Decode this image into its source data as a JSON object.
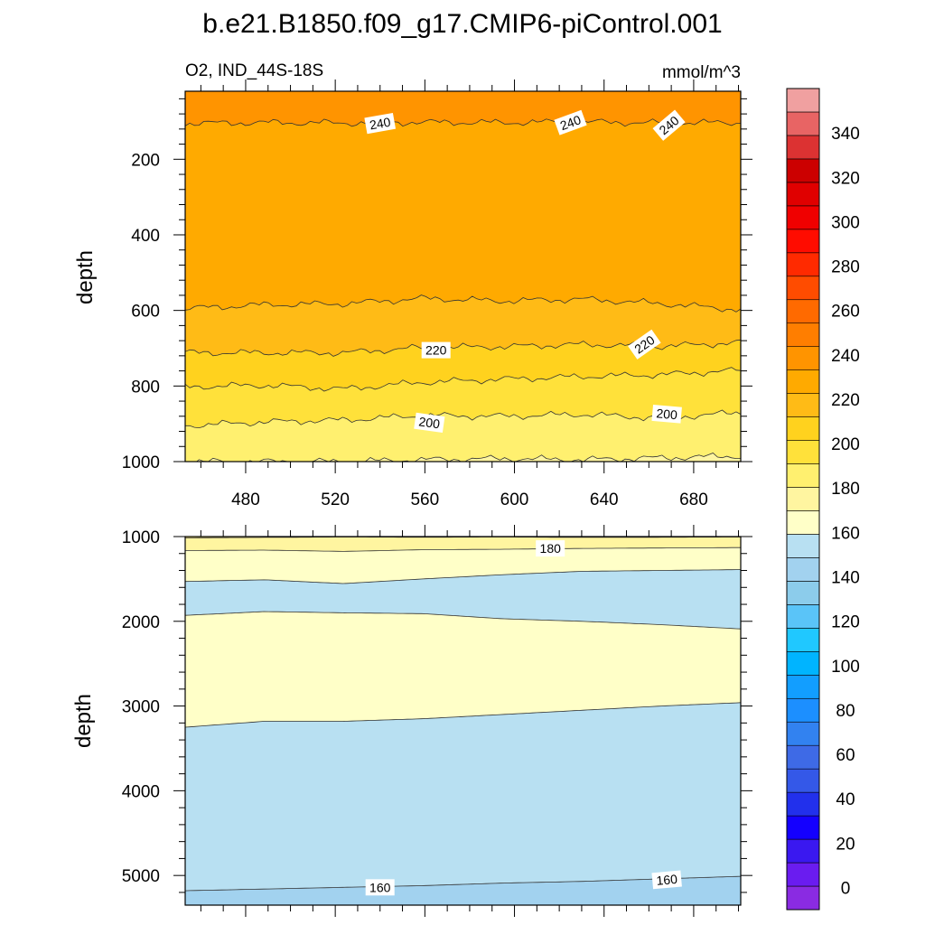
{
  "title": "b.e21.B1850.f09_g17.CMIP6-piControl.001",
  "subtitle_left": "O2, IND_44S-18S",
  "subtitle_right": "mmol/m^3",
  "chart_data": [
    {
      "type": "contour",
      "panel": "upper",
      "ylabel": "depth",
      "xlabel": "",
      "xlim": [
        453,
        701
      ],
      "ylim": [
        1000,
        20
      ],
      "x_ticks": [
        480,
        520,
        560,
        600,
        640,
        680
      ],
      "y_ticks": [
        200,
        400,
        600,
        800,
        1000
      ],
      "bands": [
        {
          "range": [
            240,
            250
          ],
          "color": "#ff9400",
          "top": [
            20,
            20,
            20,
            20,
            20,
            20,
            20,
            20
          ],
          "bottom": [
            105,
            103,
            104,
            102,
            103,
            101,
            104,
            103
          ]
        },
        {
          "range": [
            230,
            240
          ],
          "color": "#ffaa00",
          "top": [
            105,
            103,
            104,
            102,
            103,
            101,
            104,
            103
          ],
          "bottom": [
            595,
            585,
            582,
            568,
            575,
            570,
            582,
            598
          ]
        },
        {
          "range": [
            220,
            230
          ],
          "color": "#ffbb16",
          "top": [
            595,
            585,
            582,
            568,
            575,
            570,
            582,
            598
          ],
          "bottom": [
            712,
            712,
            712,
            698,
            696,
            690,
            695,
            685
          ]
        },
        {
          "range": [
            210,
            220
          ],
          "color": "#ffd21e",
          "top": [
            712,
            712,
            712,
            698,
            696,
            690,
            695,
            685
          ],
          "bottom": [
            802,
            798,
            808,
            790,
            782,
            775,
            770,
            758
          ]
        },
        {
          "range": [
            200,
            210
          ],
          "color": "#ffe13a",
          "top": [
            802,
            798,
            808,
            790,
            782,
            775,
            770,
            758
          ],
          "bottom": [
            905,
            895,
            890,
            878,
            880,
            875,
            885,
            870
          ]
        },
        {
          "range": [
            190,
            200
          ],
          "color": "#fff06f",
          "top": [
            905,
            895,
            890,
            878,
            880,
            875,
            885,
            870
          ],
          "bottom": [
            1000,
            1000,
            1000,
            995,
            992,
            995,
            990,
            985
          ]
        },
        {
          "range": [
            180,
            190
          ],
          "color": "#fff5a0",
          "top": [
            1000,
            1000,
            1000,
            995,
            992,
            995,
            990,
            985
          ],
          "bottom": [
            1000,
            1000,
            1000,
            1000,
            1000,
            1000,
            1000,
            1000
          ]
        }
      ],
      "contour_labels": [
        {
          "text": "240",
          "x": 540,
          "y": 105,
          "angle": -10
        },
        {
          "text": "240",
          "x": 625,
          "y": 103,
          "angle": -20
        },
        {
          "text": "240",
          "x": 669,
          "y": 110,
          "angle": -40
        },
        {
          "text": "220",
          "x": 565,
          "y": 705,
          "angle": 0
        },
        {
          "text": "220",
          "x": 658,
          "y": 690,
          "angle": -35
        },
        {
          "text": "200",
          "x": 562,
          "y": 897,
          "angle": 8
        },
        {
          "text": "200",
          "x": 668,
          "y": 874,
          "angle": 5
        }
      ]
    },
    {
      "type": "contour",
      "panel": "lower",
      "ylabel": "depth",
      "xlabel": "",
      "xlim": [
        453,
        701
      ],
      "ylim": [
        5350,
        1000
      ],
      "x_ticks": [
        480,
        520,
        560,
        600,
        640,
        680
      ],
      "y_ticks": [
        1000,
        2000,
        3000,
        4000,
        5000
      ],
      "bands": [
        {
          "range": [
            190,
            200
          ],
          "color": "#fff06f",
          "top": [
            1000,
            1000,
            1000,
            1000,
            1000,
            1000,
            1000,
            1000
          ],
          "bottom": [
            1015,
            1010,
            1005,
            1008,
            1005,
            1010,
            1008,
            1005
          ]
        },
        {
          "range": [
            180,
            190
          ],
          "color": "#fff5a0",
          "top": [
            1015,
            1010,
            1005,
            1008,
            1005,
            1010,
            1008,
            1005
          ],
          "bottom": [
            1165,
            1160,
            1175,
            1155,
            1150,
            1140,
            1135,
            1130
          ]
        },
        {
          "range": [
            170,
            180
          ],
          "color": "#ffffc8",
          "top": [
            1165,
            1160,
            1175,
            1155,
            1150,
            1140,
            1135,
            1130
          ],
          "bottom": [
            1530,
            1510,
            1555,
            1500,
            1450,
            1410,
            1400,
            1390
          ]
        },
        {
          "range": [
            160,
            170
          ],
          "color": "#b8e0f2",
          "top": [
            1530,
            1510,
            1555,
            1500,
            1450,
            1410,
            1400,
            1390
          ],
          "bottom": [
            1930,
            1885,
            1900,
            1910,
            1970,
            2000,
            2040,
            2090
          ]
        },
        {
          "range": [
            170,
            180
          ],
          "color": "#ffffc8",
          "top": [
            1930,
            1885,
            1900,
            1910,
            1970,
            2000,
            2040,
            2090
          ],
          "bottom": [
            3250,
            3180,
            3180,
            3150,
            3100,
            3050,
            3000,
            2960
          ]
        },
        {
          "range": [
            160,
            170
          ],
          "color": "#b8e0f2",
          "top": [
            3250,
            3180,
            3180,
            3150,
            3100,
            3050,
            3000,
            2960
          ],
          "bottom": [
            5180,
            5160,
            5140,
            5120,
            5090,
            5070,
            5040,
            5010
          ]
        },
        {
          "range": [
            150,
            160
          ],
          "color": "#a2d2ef",
          "top": [
            5180,
            5160,
            5140,
            5120,
            5090,
            5070,
            5040,
            5010
          ],
          "bottom": [
            5350,
            5350,
            5350,
            5350,
            5350,
            5350,
            5350,
            5350
          ]
        }
      ],
      "contour_labels": [
        {
          "text": "180",
          "x": 616,
          "y": 1140,
          "angle": 0
        },
        {
          "text": "160",
          "x": 540,
          "y": 5140,
          "angle": 0
        },
        {
          "text": "160",
          "x": 668,
          "y": 5050,
          "angle": -5
        }
      ]
    },
    {
      "type": "colorbar",
      "min": -10,
      "max": 360,
      "step": 10,
      "labels": [
        "0",
        "20",
        "40",
        "60",
        "80",
        "100",
        "120",
        "140",
        "160",
        "180",
        "200",
        "220",
        "240",
        "260",
        "280",
        "300",
        "320",
        "340"
      ],
      "label_values": [
        0,
        20,
        40,
        60,
        80,
        100,
        120,
        140,
        160,
        180,
        200,
        220,
        240,
        260,
        280,
        300,
        320,
        340
      ],
      "colors": [
        "#8a2be2",
        "#6a1cf0",
        "#3a18f0",
        "#1400ff",
        "#2230ec",
        "#3458e8",
        "#3e6ae6",
        "#3282f0",
        "#1c8fff",
        "#129eff",
        "#00b4ff",
        "#20c8ff",
        "#5ac4f8",
        "#8ccceb",
        "#a2d2ef",
        "#b8e0f2",
        "#ffffc8",
        "#fff5a0",
        "#fff06f",
        "#ffe13a",
        "#ffd21e",
        "#ffbb16",
        "#ffaa00",
        "#ff9400",
        "#ff7e00",
        "#ff6a00",
        "#ff4c00",
        "#ff2a00",
        "#ff0c00",
        "#f00000",
        "#e00000",
        "#cc0000",
        "#dc3232",
        "#e86464",
        "#f0a0a0"
      ]
    }
  ]
}
